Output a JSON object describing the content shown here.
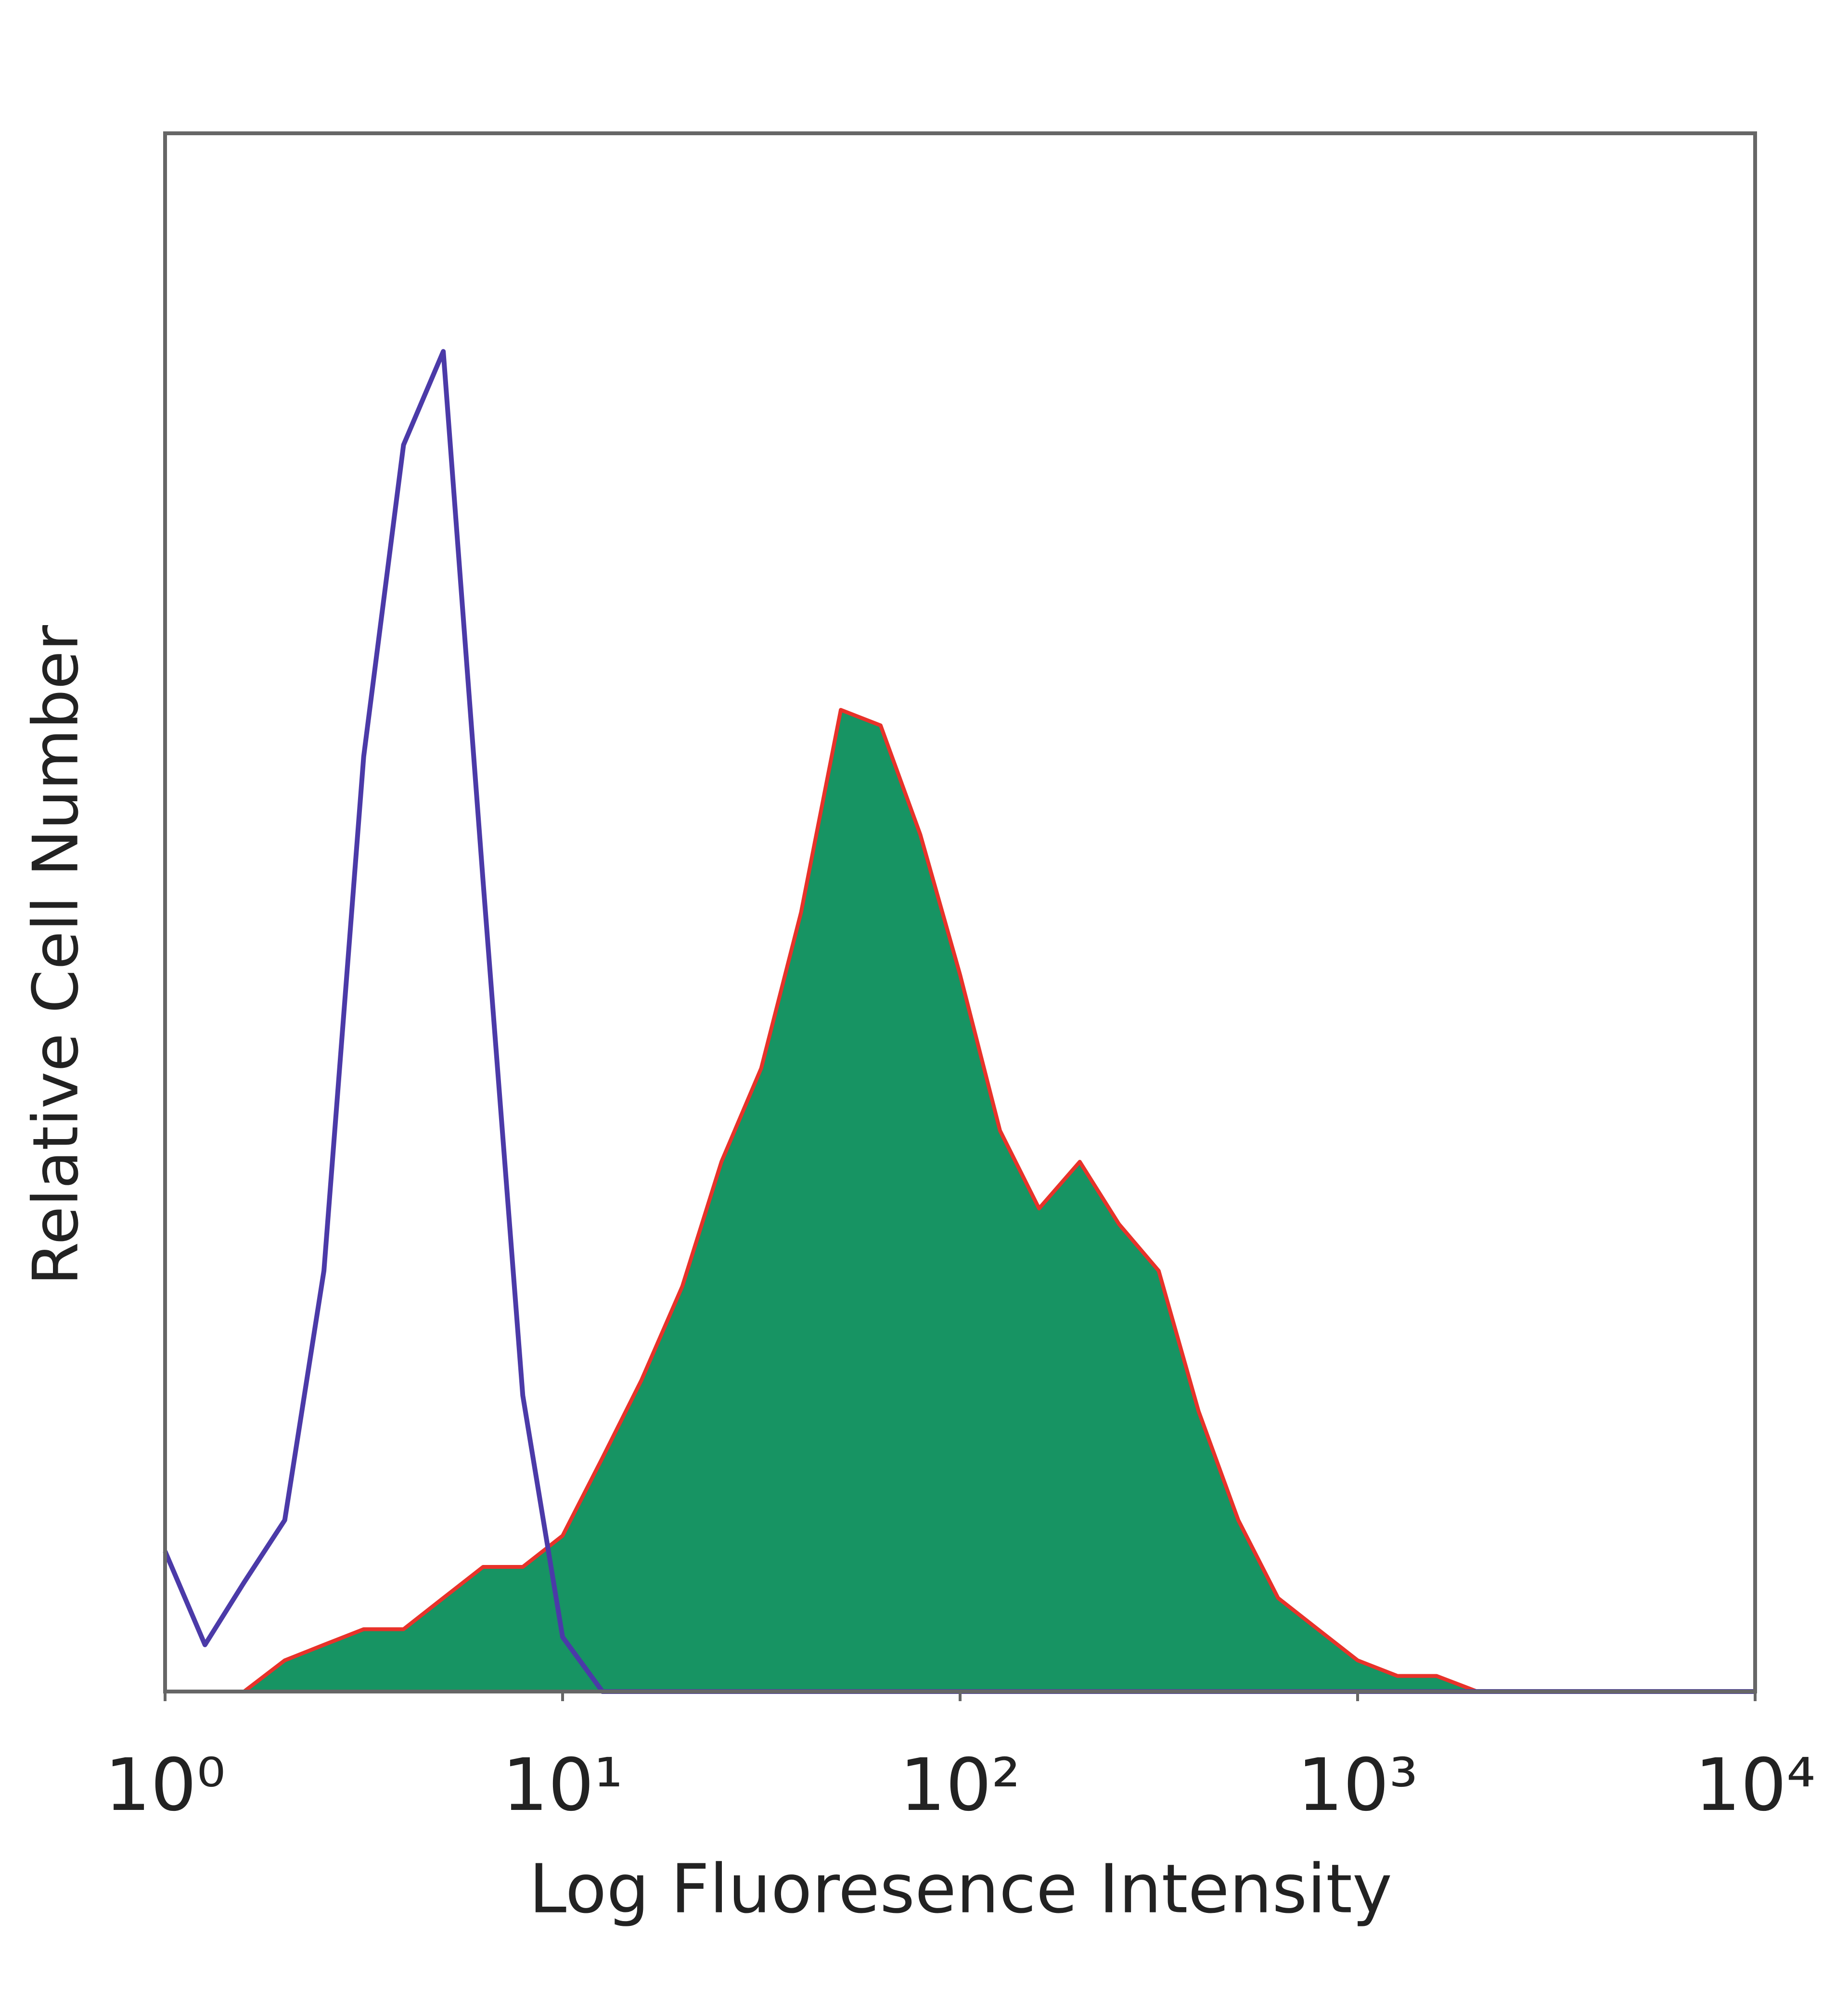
{
  "chart_data": {
    "type": "histogram-overlay",
    "x_label": "Log Fluoresence Intensity",
    "y_label": "Relative Cell Number",
    "xscale": "log",
    "xlim": [
      1,
      10000
    ],
    "xticks": [
      {
        "value": 1,
        "label": "10⁰"
      },
      {
        "value": 10,
        "label": "10¹"
      },
      {
        "value": 100,
        "label": "10²"
      },
      {
        "value": 1000,
        "label": "10³"
      },
      {
        "value": 10000,
        "label": "10⁴"
      }
    ],
    "ylim": [
      0,
      100
    ],
    "x": [
      1,
      1.26,
      1.58,
      2,
      2.51,
      3.16,
      3.98,
      5.01,
      6.31,
      7.94,
      10,
      12.6,
      15.8,
      20,
      25.1,
      31.6,
      39.8,
      50.1,
      63.1,
      79.4,
      100,
      126,
      158,
      200,
      251,
      316,
      398,
      501,
      631,
      794,
      1000,
      1260,
      1580,
      2000,
      2510,
      3160,
      3980,
      5010,
      6310,
      7940,
      10000
    ],
    "series": [
      {
        "style": "filled",
        "color": "#179463",
        "edge_color": "#e8322a",
        "values": [
          0,
          0,
          0,
          2,
          3,
          4,
          4,
          6,
          8,
          8,
          10,
          15,
          20,
          26,
          34,
          40,
          50,
          63,
          62,
          55,
          46,
          36,
          31,
          34,
          30,
          27,
          18,
          11,
          6,
          4,
          2,
          1,
          1,
          0,
          0,
          0,
          0,
          0,
          0,
          0,
          0
        ]
      },
      {
        "style": "outline",
        "color": "#4b3aa8",
        "values": [
          9,
          3,
          7,
          11,
          27,
          60,
          80,
          86,
          52,
          19,
          3.5,
          0,
          0,
          0,
          0,
          0,
          0,
          0,
          0,
          0,
          0,
          0,
          0,
          0,
          0,
          0,
          0,
          0,
          0,
          0,
          0,
          0,
          0,
          0,
          0,
          0,
          0,
          0,
          0,
          0,
          0
        ]
      }
    ]
  }
}
